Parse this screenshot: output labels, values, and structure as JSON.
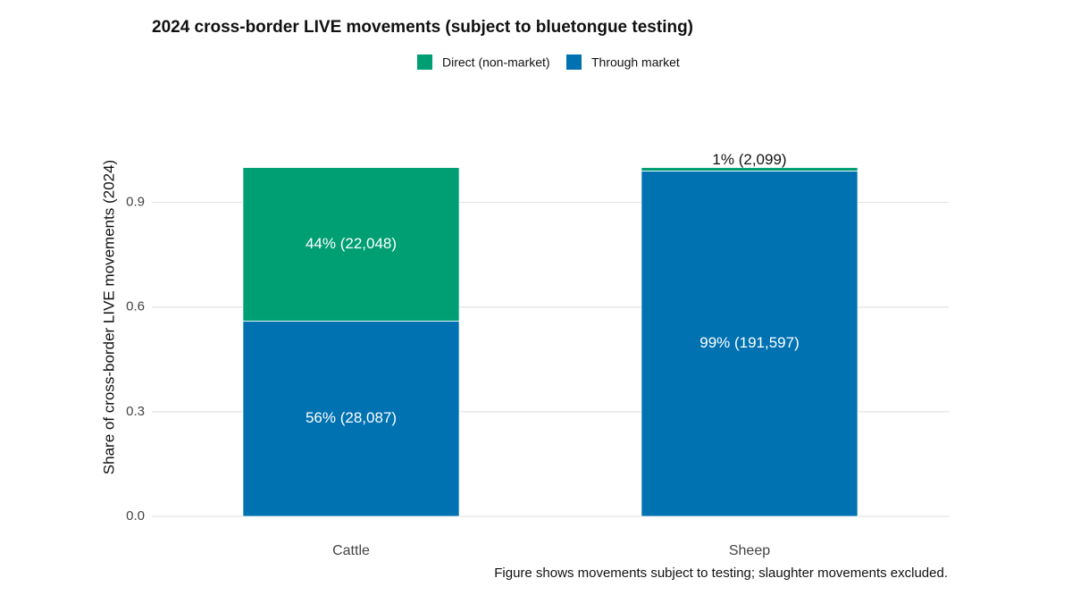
{
  "chart_data": {
    "type": "stacked_bar",
    "title": "2024 cross-border LIVE movements (subject to bluetongue testing)",
    "y_label": "Share of cross-border LIVE movements (2024)",
    "caption": "Figure shows movements subject to testing; slaughter movements excluded.",
    "categories": [
      "Cattle",
      "Sheep"
    ],
    "series": [
      {
        "name": "Direct (non-market)",
        "color": "#009e73",
        "values": [
          0.44,
          0.01
        ],
        "value_labels": [
          "44% (22,048)",
          "1% (2,099)"
        ]
      },
      {
        "name": "Through market",
        "color": "#0072b2",
        "values": [
          0.56,
          0.99
        ],
        "value_labels": [
          "56% (28,087)",
          "99% (191,597)"
        ]
      }
    ],
    "ylim": [
      0,
      1.05
    ],
    "yticks": [
      {
        "value": 0,
        "label": "0.0"
      },
      0.3,
      0.6,
      0.9
    ],
    "grid": true,
    "legend": "top"
  }
}
